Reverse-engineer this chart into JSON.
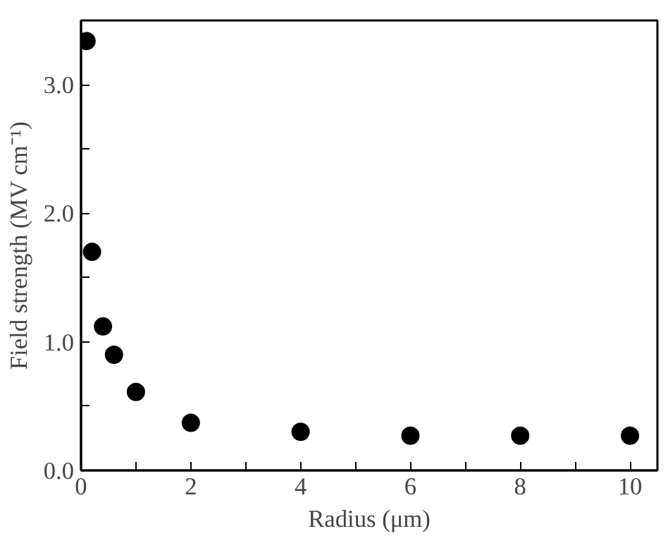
{
  "chart_data": {
    "type": "scatter",
    "xlabel": "Radius (μm)",
    "ylabel": "Field strength (MV cm⁻¹)",
    "x": [
      0.1,
      0.2,
      0.4,
      0.6,
      1,
      2,
      4,
      6,
      8,
      10
    ],
    "series": [
      {
        "color": "#000000",
        "values": [
          3.34,
          1.7,
          1.12,
          0.9,
          0.61,
          0.37,
          0.3,
          0.27,
          0.27,
          0.27
        ]
      }
    ],
    "xlim": [
      0,
      10.5
    ],
    "ylim": [
      0,
      3.5
    ],
    "xticks": [
      0,
      {
        "value": 1,
        "label": null
      },
      2,
      {
        "value": 3,
        "label": null
      },
      4,
      {
        "value": 5,
        "label": null
      },
      6,
      {
        "value": 7,
        "label": null
      },
      8,
      {
        "value": 9,
        "label": null
      },
      10
    ],
    "yticks": [
      "0.0",
      {
        "value": 0.5,
        "label": null
      },
      {
        "value": 1,
        "label": "1.0"
      },
      {
        "value": 1.5,
        "label": null
      },
      {
        "value": 2,
        "label": "2.0"
      },
      {
        "value": 2.5,
        "label": null
      },
      {
        "value": 3,
        "label": "3.0"
      }
    ],
    "grid": false,
    "marker": "circle"
  }
}
